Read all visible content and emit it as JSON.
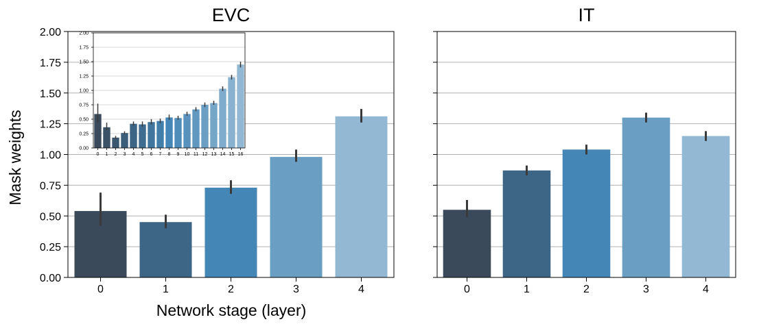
{
  "figure": {
    "ylabel": "Mask weights",
    "xlabel": "Network stage (layer)"
  },
  "chart_data": [
    {
      "type": "bar",
      "title": "EVC",
      "xlabel": "Network stage (layer)",
      "ylabel": "Mask weights",
      "categories": [
        "0",
        "1",
        "2",
        "3",
        "4"
      ],
      "values": [
        0.54,
        0.45,
        0.73,
        0.98,
        1.31
      ],
      "error": [
        [
          0.42,
          0.69
        ],
        [
          0.4,
          0.51
        ],
        [
          0.68,
          0.79
        ],
        [
          0.94,
          1.04
        ],
        [
          1.26,
          1.37
        ]
      ],
      "ylim": [
        0,
        2.0
      ],
      "yticks": [
        "0.00",
        "0.25",
        "0.50",
        "0.75",
        "1.00",
        "1.25",
        "1.50",
        "1.75",
        "2.00"
      ],
      "grid": "horizontal",
      "colors": [
        "#3a4a5a",
        "#3d6585",
        "#4486b6",
        "#6b9ec3",
        "#93b8d4"
      ]
    },
    {
      "type": "bar",
      "title": "IT",
      "categories": [
        "0",
        "1",
        "2",
        "3",
        "4"
      ],
      "values": [
        0.55,
        0.87,
        1.04,
        1.3,
        1.15
      ],
      "error": [
        [
          0.49,
          0.63
        ],
        [
          0.83,
          0.91
        ],
        [
          1.0,
          1.08
        ],
        [
          1.26,
          1.34
        ],
        [
          1.11,
          1.19
        ]
      ],
      "ylim": [
        0,
        2.0
      ],
      "grid": "horizontal",
      "colors": [
        "#3a4a5a",
        "#3d6585",
        "#4486b6",
        "#6b9ec3",
        "#93b8d4"
      ]
    },
    {
      "type": "bar",
      "inset_of": "EVC",
      "categories": [
        "0",
        "1",
        "2",
        "3",
        "4",
        "5",
        "6",
        "7",
        "8",
        "9",
        "10",
        "11",
        "12",
        "13",
        "14",
        "15",
        "16"
      ],
      "values": [
        0.59,
        0.36,
        0.18,
        0.26,
        0.42,
        0.41,
        0.45,
        0.47,
        0.53,
        0.52,
        0.59,
        0.67,
        0.75,
        0.78,
        1.03,
        1.23,
        1.45
      ],
      "error": [
        [
          0.44,
          0.77
        ],
        [
          0.31,
          0.44
        ],
        [
          0.16,
          0.21
        ],
        [
          0.24,
          0.29
        ],
        [
          0.39,
          0.46
        ],
        [
          0.37,
          0.46
        ],
        [
          0.41,
          0.5
        ],
        [
          0.43,
          0.51
        ],
        [
          0.49,
          0.58
        ],
        [
          0.49,
          0.56
        ],
        [
          0.56,
          0.63
        ],
        [
          0.64,
          0.71
        ],
        [
          0.71,
          0.79
        ],
        [
          0.75,
          0.82
        ],
        [
          0.99,
          1.07
        ],
        [
          1.19,
          1.27
        ],
        [
          1.4,
          1.5
        ]
      ],
      "ylim": [
        0,
        2.0
      ],
      "yticks": [
        "0.00",
        "0.25",
        "0.50",
        "0.75",
        "1.00",
        "1.25",
        "1.50",
        "1.75",
        "2.00"
      ],
      "grid": "horizontal"
    }
  ]
}
